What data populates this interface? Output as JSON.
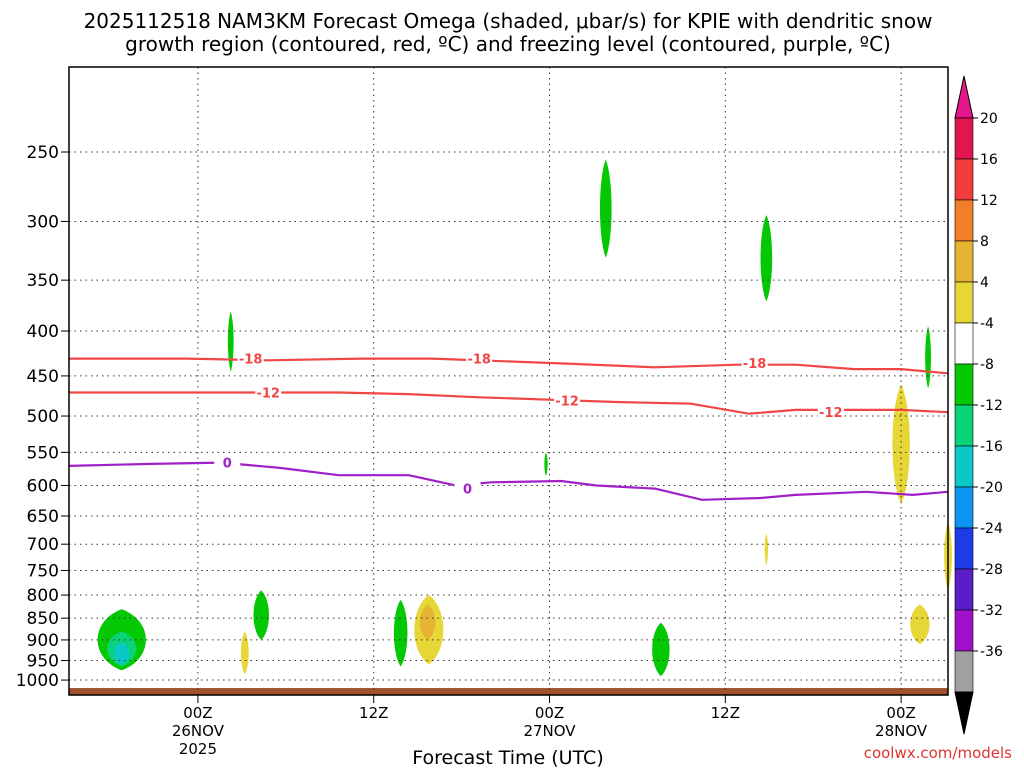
{
  "header": {
    "title_line1": "2025112518 NAM3KM Forecast Omega (shaded, μbar/s) for KPIE with dendritic snow",
    "title_line2": "growth region (contoured, red, ºC) and freezing level (contoured, purple, ºC)"
  },
  "footer": {
    "xlabel": "Forecast Time (UTC)",
    "watermark": "coolwx.com/models"
  },
  "chart_data": {
    "type": "contour",
    "title": "2025112518 NAM3KM Forecast Omega (shaded, μbar/s) for KPIE with dendritic snow growth region (contoured, red, ºC) and freezing level (contoured, purple, ºC)",
    "xlabel": "Forecast Time (UTC)",
    "ylabel": "",
    "y_scale": "log-pressure, inverted",
    "ylim": [
      1040,
      200
    ],
    "xlim": [
      -5,
      70
    ],
    "grid": true,
    "x_ticks": [
      {
        "hour": 6,
        "label": "00Z",
        "sub1": "26NOV",
        "sub2": "2025"
      },
      {
        "hour": 21,
        "label": "12Z",
        "sub1": "",
        "sub2": ""
      },
      {
        "hour": 36,
        "label": "00Z",
        "sub1": "27NOV",
        "sub2": ""
      },
      {
        "hour": 51,
        "label": "12Z",
        "sub1": "",
        "sub2": ""
      },
      {
        "hour": 66,
        "label": "00Z",
        "sub1": "28NOV",
        "sub2": ""
      }
    ],
    "y_ticks": [
      250,
      300,
      350,
      400,
      450,
      500,
      550,
      600,
      650,
      700,
      750,
      800,
      850,
      900,
      950,
      1000
    ],
    "colorbar": {
      "levels": [
        "20",
        "16",
        "12",
        "8",
        "4",
        "-4",
        "-8",
        "-12",
        "-16",
        "-20",
        "-24",
        "-28",
        "-32",
        "-36"
      ],
      "colors": [
        "#e01650",
        "#f03c3c",
        "#f07f28",
        "#e6b432",
        "#e6d737",
        "#ffffff",
        "#05c805",
        "#0ad278",
        "#0ac8c8",
        "#0a96f0",
        "#1e3ce6",
        "#5a1ec8",
        "#a010c8",
        "#a0a0a0"
      ],
      "top_arrow_color": "#e6168c",
      "bottom_arrow_color": "#000000"
    },
    "contours": [
      {
        "name": "-18",
        "color": "#f04646",
        "labels": [
          [
            10.5,
            430
          ],
          [
            30,
            430
          ],
          [
            53.5,
            435
          ]
        ],
        "points": [
          [
            -5,
            430
          ],
          [
            5,
            430
          ],
          [
            12,
            432
          ],
          [
            20,
            430
          ],
          [
            26,
            430
          ],
          [
            32,
            433
          ],
          [
            38,
            436
          ],
          [
            45,
            440
          ],
          [
            52,
            437
          ],
          [
            57,
            437
          ],
          [
            62,
            442
          ],
          [
            66,
            442
          ],
          [
            70,
            447
          ]
        ]
      },
      {
        "name": "-12",
        "color": "#f04646",
        "labels": [
          [
            12,
            470
          ],
          [
            37.5,
            480
          ],
          [
            60,
            495
          ]
        ],
        "points": [
          [
            -5,
            470
          ],
          [
            4,
            470
          ],
          [
            12,
            470
          ],
          [
            18,
            470
          ],
          [
            24,
            472
          ],
          [
            30,
            476
          ],
          [
            36,
            479
          ],
          [
            42,
            482
          ],
          [
            48,
            484
          ],
          [
            53,
            497
          ],
          [
            57,
            492
          ],
          [
            62,
            492
          ],
          [
            66,
            492
          ],
          [
            70,
            495
          ]
        ]
      },
      {
        "name": "0",
        "color": "#a020c8",
        "labels": [
          [
            8.5,
            565
          ],
          [
            29,
            605
          ]
        ],
        "points": [
          [
            -5,
            570
          ],
          [
            2,
            567
          ],
          [
            8,
            565
          ],
          [
            13,
            573
          ],
          [
            18,
            584
          ],
          [
            24,
            584
          ],
          [
            28,
            600
          ],
          [
            31,
            595
          ],
          [
            37,
            593
          ],
          [
            40,
            600
          ],
          [
            45,
            605
          ],
          [
            49,
            623
          ],
          [
            54,
            620
          ],
          [
            57,
            615
          ],
          [
            63,
            610
          ],
          [
            67,
            615
          ],
          [
            70,
            610
          ]
        ]
      }
    ],
    "omega_areas": [
      {
        "name": "green-cell-1",
        "color": "#05c805",
        "cx": -0.5,
        "cy": 910,
        "rx": 2.5,
        "ry_top": 830,
        "ry_bot": 975
      },
      {
        "name": "teal-cell-1",
        "color": "#0ad278",
        "cx": -0.5,
        "cy": 930,
        "rx": 1.5,
        "ry_top": 880,
        "ry_bot": 965
      },
      {
        "name": "cyan-cell-1",
        "color": "#0ac8c8",
        "cx": -0.5,
        "cy": 935,
        "rx": 0.8,
        "ry_top": 905,
        "ry_bot": 960
      },
      {
        "name": "green-cell-2",
        "color": "#05c805",
        "cx": 8.8,
        "cy": 410,
        "rx": 0.3,
        "ry_top": 380,
        "ry_bot": 445
      },
      {
        "name": "yellow-cell-1",
        "color": "#e6d737",
        "cx": 10,
        "cy": 935,
        "rx": 0.4,
        "ry_top": 880,
        "ry_bot": 985
      },
      {
        "name": "green-cell-3",
        "color": "#05c805",
        "cx": 11.4,
        "cy": 845,
        "rx": 0.8,
        "ry_top": 790,
        "ry_bot": 900
      },
      {
        "name": "green-cell-4",
        "color": "#05c805",
        "cx": 23.3,
        "cy": 880,
        "rx": 0.7,
        "ry_top": 810,
        "ry_bot": 965
      },
      {
        "name": "yellow-cell-2",
        "color": "#e6d737",
        "cx": 25.7,
        "cy": 870,
        "rx": 1.5,
        "ry_top": 800,
        "ry_bot": 960
      },
      {
        "name": "orange-cell-1",
        "color": "#e6b432",
        "cx": 25.6,
        "cy": 860,
        "rx": 0.8,
        "ry_top": 820,
        "ry_bot": 900
      },
      {
        "name": "green-cell-5",
        "color": "#05c805",
        "cx": 35.7,
        "cy": 565,
        "rx": 0.15,
        "ry_top": 550,
        "ry_bot": 585
      },
      {
        "name": "green-cell-6",
        "color": "#05c805",
        "cx": 40.8,
        "cy": 290,
        "rx": 0.6,
        "ry_top": 255,
        "ry_bot": 330
      },
      {
        "name": "green-cell-7",
        "color": "#05c805",
        "cx": 45.5,
        "cy": 920,
        "rx": 0.9,
        "ry_top": 860,
        "ry_bot": 990
      },
      {
        "name": "green-cell-8",
        "color": "#05c805",
        "cx": 54.5,
        "cy": 330,
        "rx": 0.6,
        "ry_top": 295,
        "ry_bot": 370
      },
      {
        "name": "yellow-cell-3",
        "color": "#e6d737",
        "cx": 54.5,
        "cy": 705,
        "rx": 0.12,
        "ry_top": 680,
        "ry_bot": 740
      },
      {
        "name": "yellow-cell-4",
        "color": "#e6d737",
        "cx": 66,
        "cy": 540,
        "rx": 0.9,
        "ry_top": 460,
        "ry_bot": 630
      },
      {
        "name": "green-cell-9",
        "color": "#05c805",
        "cx": 68.3,
        "cy": 430,
        "rx": 0.3,
        "ry_top": 395,
        "ry_bot": 465
      },
      {
        "name": "yellow-cell-5",
        "color": "#e6d737",
        "cx": 67.6,
        "cy": 860,
        "rx": 1,
        "ry_top": 820,
        "ry_bot": 910
      },
      {
        "name": "yellow-cell-6",
        "color": "#e6d737",
        "cx": 70,
        "cy": 720,
        "rx": 0.4,
        "ry_top": 660,
        "ry_bot": 790
      }
    ],
    "ground_color": "#a0522d"
  }
}
